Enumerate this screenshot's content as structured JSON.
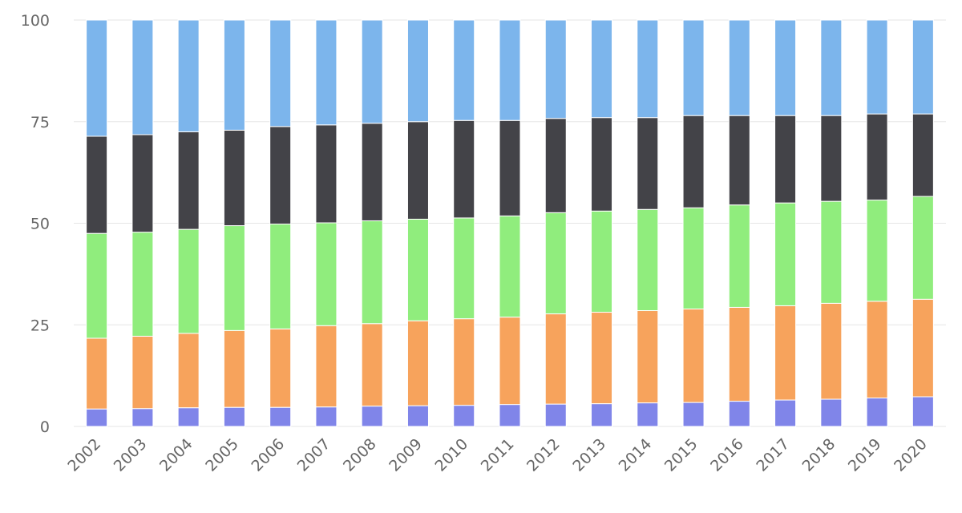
{
  "chart_data": {
    "type": "bar",
    "stacked": true,
    "title": "",
    "xlabel": "",
    "ylabel": "",
    "ylim": [
      0,
      100
    ],
    "yticks": [
      0,
      25,
      50,
      75,
      100
    ],
    "grid": true,
    "legend": "none",
    "categories": [
      "2002",
      "2003",
      "2004",
      "2005",
      "2006",
      "2007",
      "2008",
      "2009",
      "2010",
      "2011",
      "2012",
      "2013",
      "2014",
      "2015",
      "2016",
      "2017",
      "2018",
      "2019",
      "2020"
    ],
    "series": [
      {
        "color": "#8085e9",
        "values": [
          4.3,
          4.4,
          4.6,
          4.7,
          4.7,
          4.8,
          5.0,
          5.1,
          5.2,
          5.4,
          5.5,
          5.6,
          5.8,
          5.9,
          6.2,
          6.5,
          6.7,
          7.0,
          7.3
        ]
      },
      {
        "color": "#f7a35c",
        "values": [
          17.4,
          17.8,
          18.3,
          18.9,
          19.3,
          20.0,
          20.3,
          20.9,
          21.3,
          21.5,
          22.2,
          22.5,
          22.7,
          23.0,
          23.1,
          23.2,
          23.6,
          23.8,
          24.0
        ]
      },
      {
        "color": "#90ed7d",
        "values": [
          25.8,
          25.6,
          25.6,
          25.8,
          25.8,
          25.3,
          25.3,
          25.0,
          24.8,
          24.9,
          24.9,
          24.9,
          24.9,
          24.9,
          25.2,
          25.3,
          25.1,
          24.9,
          25.3
        ]
      },
      {
        "color": "#434348",
        "values": [
          23.9,
          24.0,
          24.0,
          23.5,
          24.0,
          24.1,
          24.0,
          24.0,
          24.0,
          23.5,
          23.2,
          23.0,
          22.6,
          22.7,
          22.0,
          21.5,
          21.1,
          21.2,
          20.3
        ]
      },
      {
        "color": "#7cb5ec",
        "values": [
          28.6,
          28.2,
          27.5,
          27.1,
          26.2,
          25.8,
          25.4,
          25.0,
          24.7,
          24.7,
          24.2,
          24.0,
          24.0,
          23.5,
          23.5,
          23.5,
          23.5,
          23.1,
          23.1
        ]
      }
    ]
  }
}
